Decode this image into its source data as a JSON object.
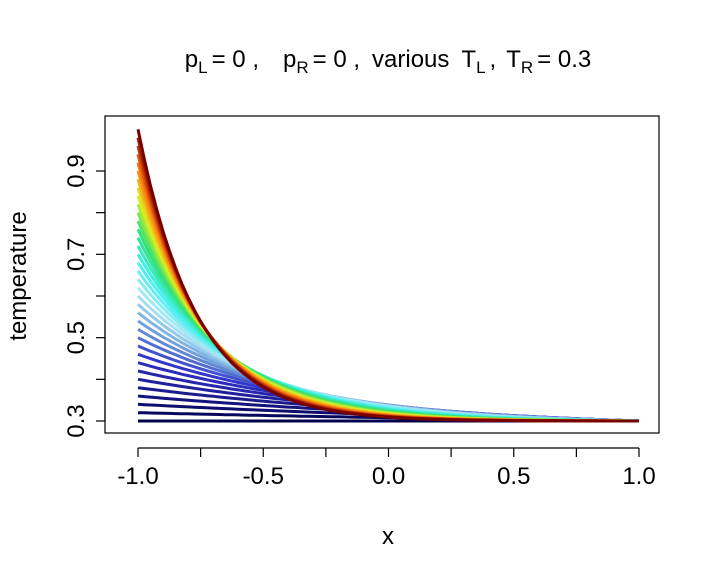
{
  "chart_data": {
    "type": "line",
    "title_parts": {
      "p": "p",
      "L": "L",
      "R": "R",
      "T": "T",
      "eq0": "= 0 ,",
      "various": "various",
      "comma": ",",
      "eq_tr": "= 0.3"
    },
    "xlabel": "x",
    "ylabel": "temperature",
    "xlim": [
      -1.0,
      1.0
    ],
    "ylim": [
      0.29,
      1.0
    ],
    "x_ticks": [
      -1.0,
      -0.75,
      -0.5,
      -0.25,
      0.0,
      0.25,
      0.5,
      0.75,
      1.0
    ],
    "x_tick_labels": [
      "-1.0",
      "",
      "-0.5",
      "",
      "0.0",
      "",
      "0.5",
      "",
      "1.0"
    ],
    "y_ticks": [
      0.3,
      0.4,
      0.5,
      0.6,
      0.7,
      0.8,
      0.9
    ],
    "y_tick_labels": [
      "0.3",
      "",
      "0.5",
      "",
      "0.7",
      "",
      "0.9"
    ],
    "T_R": 0.3,
    "T_L_values": [
      0.3,
      0.32,
      0.34,
      0.36,
      0.38,
      0.4,
      0.42,
      0.44,
      0.46,
      0.48,
      0.5,
      0.52,
      0.54,
      0.56,
      0.58,
      0.6,
      0.62,
      0.64,
      0.66,
      0.68,
      0.7,
      0.72,
      0.74,
      0.76,
      0.78,
      0.8,
      0.82,
      0.84,
      0.86,
      0.88,
      0.9,
      0.92,
      0.94,
      0.96,
      0.98,
      1.0
    ],
    "curve_model": "T(x) = T_R + (T_L - T_R) * exp(-k (x+1)), k grows with T_L",
    "series_colors": [
      "#00004d",
      "#1a1a8c",
      "#3030c8",
      "#6a9ad8",
      "#b0e8f4",
      "#40f0f0",
      "#30e070",
      "#e0f020",
      "#ff7010",
      "#7a0000"
    ],
    "grid": false,
    "legend": "none"
  }
}
